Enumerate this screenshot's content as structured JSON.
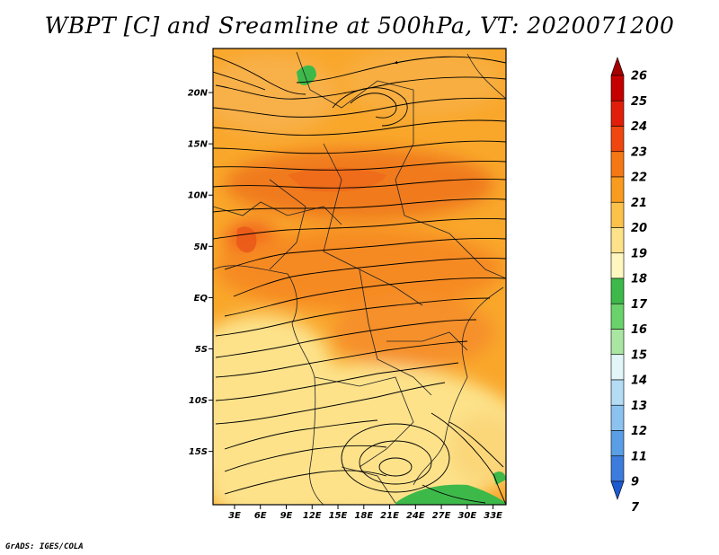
{
  "title": "WBPT [C] and Sreamline at 500hPa, VT: 2020071200",
  "credit": "GrADS: IGES/COLA",
  "map": {
    "lat_labels": [
      "20N",
      "15N",
      "10N",
      "5N",
      "EQ",
      "5S",
      "10S",
      "15S"
    ],
    "lat_values": [
      20,
      15,
      10,
      5,
      0,
      -5,
      -10,
      -15
    ],
    "lon_labels": [
      "3E",
      "6E",
      "9E",
      "12E",
      "15E",
      "18E",
      "21E",
      "24E",
      "27E",
      "30E",
      "33E"
    ],
    "lon_values": [
      3,
      6,
      9,
      12,
      15,
      18,
      21,
      24,
      27,
      30,
      33
    ],
    "extent": {
      "lon_min": 0.5,
      "lon_max": 34.5,
      "lat_min": -20.2,
      "lat_max": 24.3
    }
  },
  "colorbar": {
    "labels": [
      "26",
      "25",
      "24",
      "23",
      "22",
      "21",
      "20",
      "19",
      "18",
      "17",
      "16",
      "15",
      "14",
      "13",
      "12",
      "11",
      "9",
      "7"
    ],
    "colors": [
      "#a50000",
      "#c40000",
      "#e01e0a",
      "#f0460f",
      "#f57814",
      "#f99b1e",
      "#fbc14a",
      "#fde28a",
      "#fef7c0",
      "#3db94a",
      "#6ad26a",
      "#a8e6a2",
      "#e2f6f8",
      "#b4dcf5",
      "#8cc2f0",
      "#5a9ee6",
      "#3c7cdc",
      "#1c5ad0"
    ]
  }
}
